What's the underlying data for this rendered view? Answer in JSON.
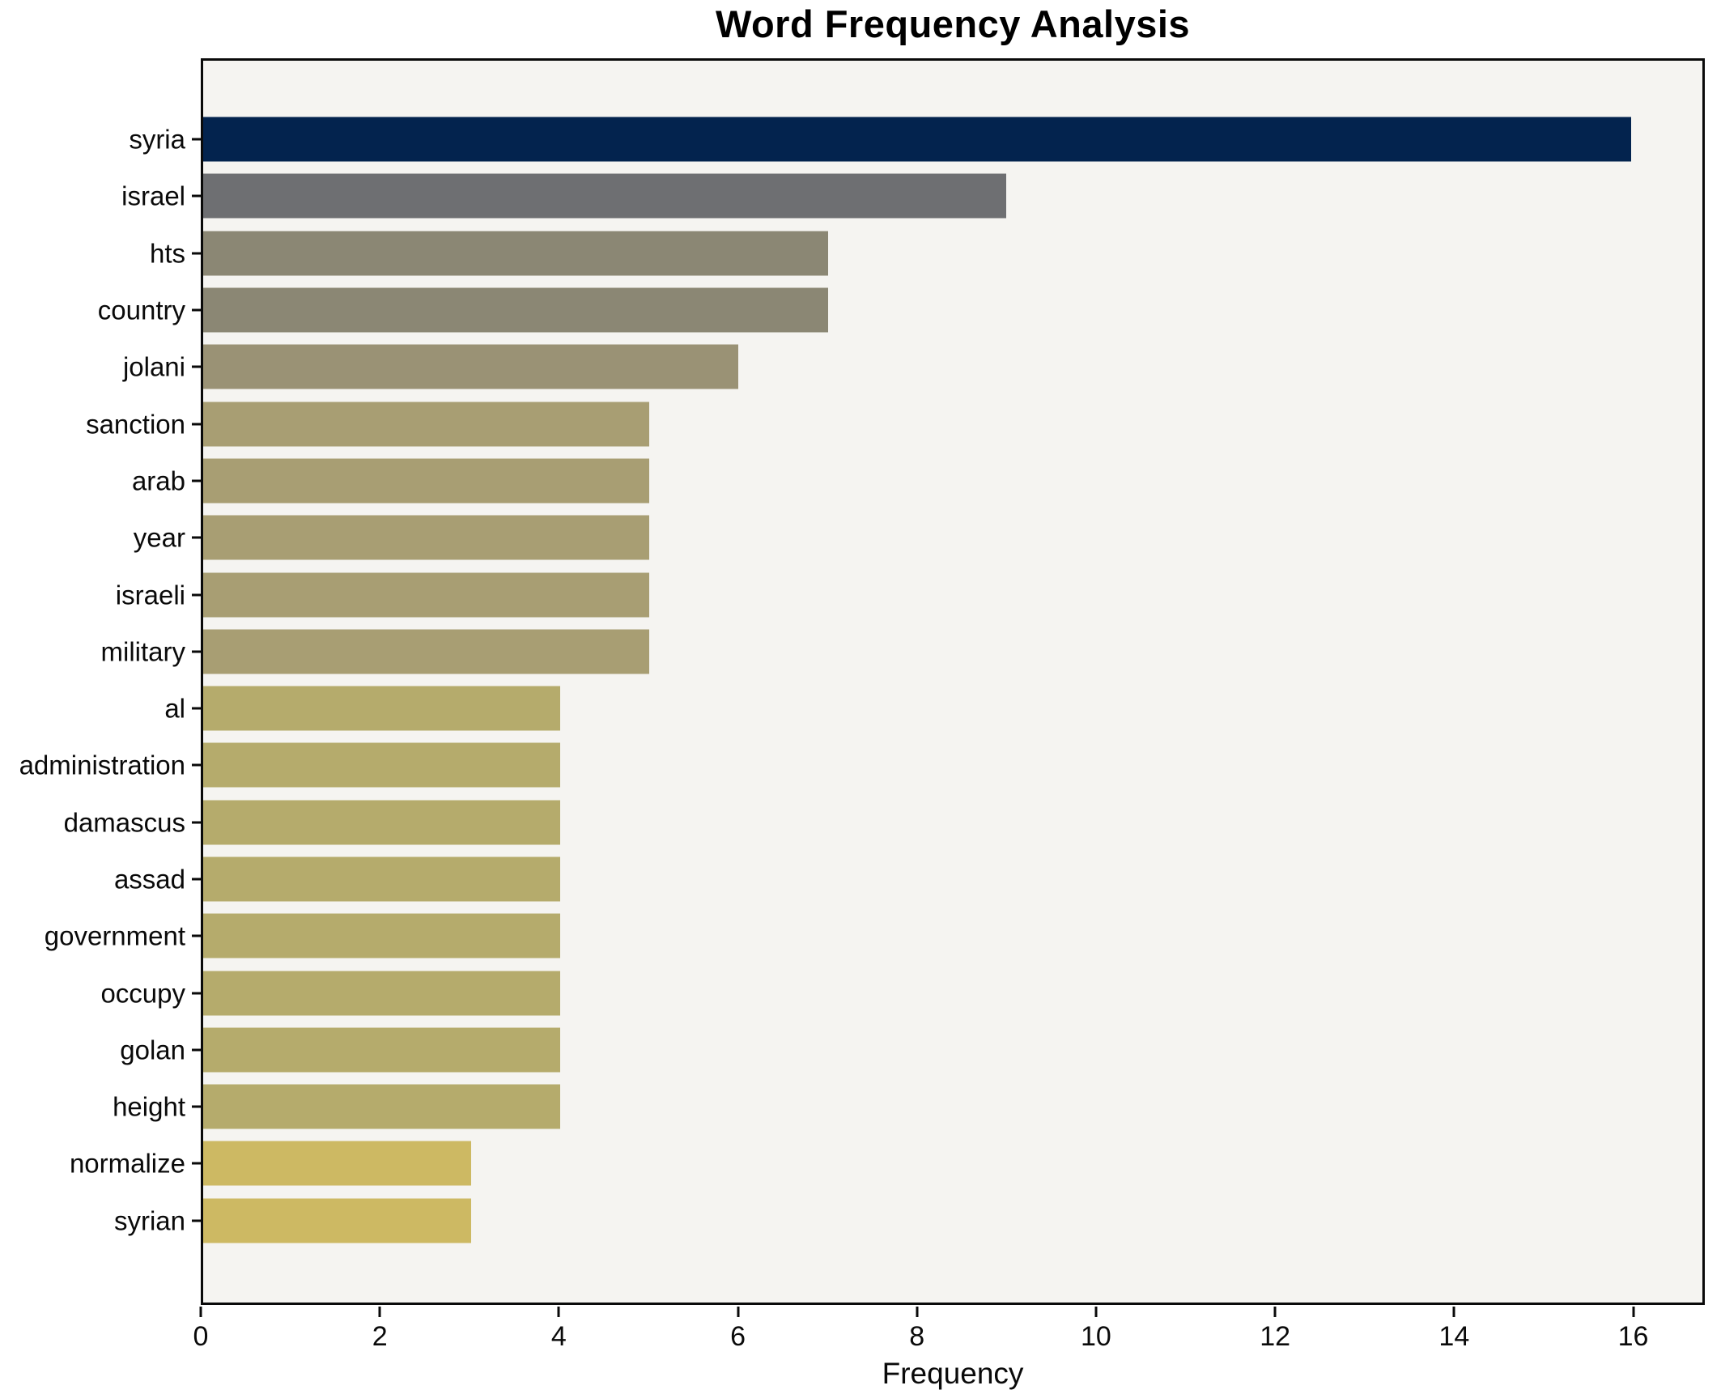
{
  "chart_data": {
    "type": "bar",
    "orientation": "horizontal",
    "title": "Word Frequency Analysis",
    "xlabel": "Frequency",
    "ylabel": "",
    "xlim": [
      0,
      16.8
    ],
    "xticks": [
      0,
      2,
      4,
      6,
      8,
      10,
      12,
      14,
      16
    ],
    "grid": false,
    "legend": "none",
    "categories": [
      "syria",
      "israel",
      "hts",
      "country",
      "jolani",
      "sanction",
      "arab",
      "year",
      "israeli",
      "military",
      "al",
      "administration",
      "damascus",
      "assad",
      "government",
      "occupy",
      "golan",
      "height",
      "normalize",
      "syrian"
    ],
    "values": [
      16,
      9,
      7,
      7,
      6,
      5,
      5,
      5,
      5,
      5,
      4,
      4,
      4,
      4,
      4,
      4,
      4,
      4,
      3,
      3
    ],
    "bar_colors": [
      "#03234e",
      "#6e6f72",
      "#8b8774",
      "#8b8774",
      "#9a9275",
      "#a89e73",
      "#a89e73",
      "#a89e73",
      "#a89e73",
      "#a89e73",
      "#b5ab6c",
      "#b5ab6c",
      "#b5ab6c",
      "#b5ab6c",
      "#b5ab6c",
      "#b5ab6c",
      "#b5ab6c",
      "#b5ab6c",
      "#cdb963",
      "#cdb963"
    ],
    "colors": {
      "plot_background": "#f5f4f1",
      "figure_background": "#ffffff",
      "spine": "#0a0a0a",
      "text": "#000000"
    }
  }
}
